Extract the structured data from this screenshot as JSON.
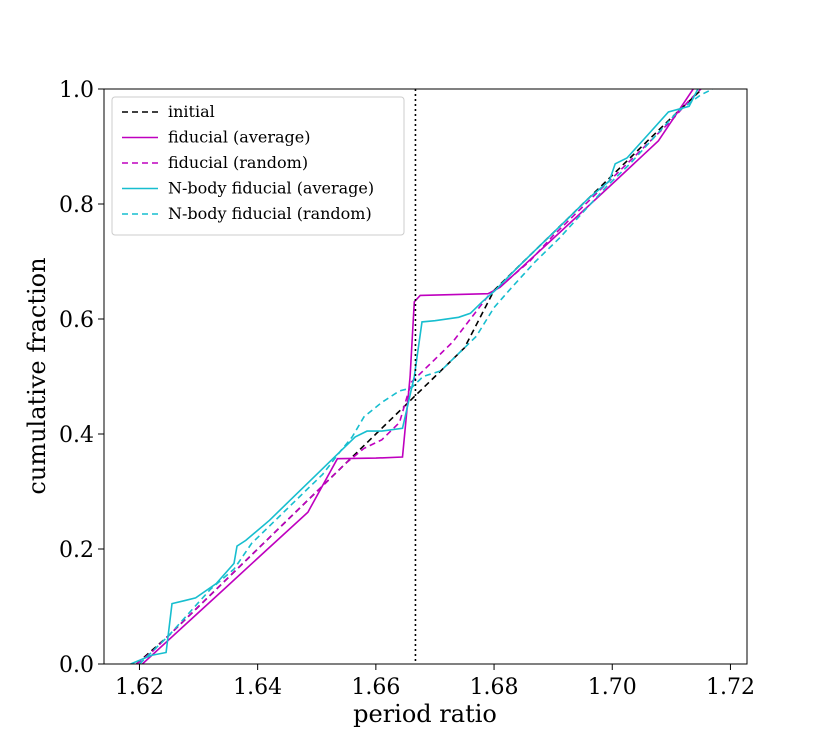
{
  "chart_data": {
    "type": "line",
    "xlabel": "period ratio",
    "ylabel": "cumulative fraction",
    "xlim": [
      1.614,
      1.7228
    ],
    "ylim": [
      0.0,
      1.0
    ],
    "xticks": [
      1.62,
      1.64,
      1.66,
      1.68,
      1.7,
      1.72
    ],
    "xtick_labels": [
      "1.62",
      "1.64",
      "1.66",
      "1.68",
      "1.70",
      "1.72"
    ],
    "yticks": [
      0.0,
      0.2,
      0.4,
      0.6,
      0.8,
      1.0
    ],
    "ytick_labels": [
      "0.0",
      "0.2",
      "0.4",
      "0.6",
      "0.8",
      "1.0"
    ],
    "grid": false,
    "legend_position": "upper-left",
    "reference_line": {
      "x": 1.6667,
      "style": "dotted",
      "color": "#000000"
    },
    "series": [
      {
        "name": "initial",
        "color": "#000000",
        "dash": "dashed",
        "points": [
          [
            1.6195,
            0.0
          ],
          [
            1.625,
            0.05
          ],
          [
            1.63,
            0.1
          ],
          [
            1.635,
            0.15
          ],
          [
            1.64,
            0.2
          ],
          [
            1.645,
            0.25
          ],
          [
            1.65,
            0.3
          ],
          [
            1.655,
            0.35
          ],
          [
            1.66,
            0.4
          ],
          [
            1.665,
            0.45
          ],
          [
            1.67,
            0.5
          ],
          [
            1.675,
            0.55
          ],
          [
            1.68,
            0.65
          ],
          [
            1.685,
            0.7
          ],
          [
            1.69,
            0.75
          ],
          [
            1.695,
            0.8
          ],
          [
            1.7,
            0.85
          ],
          [
            1.705,
            0.9
          ],
          [
            1.71,
            0.95
          ],
          [
            1.7152,
            1.0
          ]
        ]
      },
      {
        "name": "fiducial (average)",
        "color": "#bf00bf",
        "dash": "solid",
        "points": [
          [
            1.6205,
            0.0
          ],
          [
            1.6275,
            0.066
          ],
          [
            1.6345,
            0.132
          ],
          [
            1.6415,
            0.198
          ],
          [
            1.6485,
            0.264
          ],
          [
            1.6535,
            0.357
          ],
          [
            1.66,
            0.358
          ],
          [
            1.6645,
            0.36
          ],
          [
            1.6658,
            0.5
          ],
          [
            1.6665,
            0.63
          ],
          [
            1.6675,
            0.641
          ],
          [
            1.679,
            0.644
          ],
          [
            1.681,
            0.655
          ],
          [
            1.69,
            0.74
          ],
          [
            1.7,
            0.835
          ],
          [
            1.7078,
            0.91
          ],
          [
            1.7137,
            1.0
          ]
        ]
      },
      {
        "name": "fiducial (random)",
        "color": "#bf00bf",
        "dash": "dashed",
        "points": [
          [
            1.6195,
            0.0
          ],
          [
            1.622,
            0.02
          ],
          [
            1.625,
            0.05
          ],
          [
            1.628,
            0.08
          ],
          [
            1.632,
            0.12
          ],
          [
            1.636,
            0.16
          ],
          [
            1.64,
            0.2
          ],
          [
            1.644,
            0.24
          ],
          [
            1.648,
            0.28
          ],
          [
            1.652,
            0.32
          ],
          [
            1.655,
            0.35
          ],
          [
            1.658,
            0.375
          ],
          [
            1.661,
            0.39
          ],
          [
            1.664,
            0.42
          ],
          [
            1.666,
            0.49
          ],
          [
            1.668,
            0.51
          ],
          [
            1.671,
            0.54
          ],
          [
            1.673,
            0.56
          ],
          [
            1.676,
            0.6
          ],
          [
            1.679,
            0.64
          ],
          [
            1.682,
            0.665
          ],
          [
            1.686,
            0.7
          ],
          [
            1.69,
            0.745
          ],
          [
            1.694,
            0.785
          ],
          [
            1.698,
            0.825
          ],
          [
            1.702,
            0.865
          ],
          [
            1.706,
            0.905
          ],
          [
            1.71,
            0.945
          ],
          [
            1.713,
            0.98
          ],
          [
            1.715,
            1.0
          ]
        ]
      },
      {
        "name": "N-body fiducial (average)",
        "color": "#17becf",
        "dash": "solid",
        "points": [
          [
            1.6185,
            0.0
          ],
          [
            1.622,
            0.015
          ],
          [
            1.6245,
            0.02
          ],
          [
            1.6255,
            0.105
          ],
          [
            1.6275,
            0.11
          ],
          [
            1.6295,
            0.115
          ],
          [
            1.633,
            0.14
          ],
          [
            1.636,
            0.175
          ],
          [
            1.6365,
            0.205
          ],
          [
            1.638,
            0.215
          ],
          [
            1.642,
            0.25
          ],
          [
            1.646,
            0.29
          ],
          [
            1.65,
            0.33
          ],
          [
            1.654,
            0.37
          ],
          [
            1.6565,
            0.395
          ],
          [
            1.6585,
            0.405
          ],
          [
            1.661,
            0.405
          ],
          [
            1.6645,
            0.41
          ],
          [
            1.6665,
            0.5
          ],
          [
            1.6678,
            0.595
          ],
          [
            1.67,
            0.597
          ],
          [
            1.674,
            0.603
          ],
          [
            1.676,
            0.61
          ],
          [
            1.678,
            0.63
          ],
          [
            1.68,
            0.648
          ],
          [
            1.684,
            0.69
          ],
          [
            1.688,
            0.73
          ],
          [
            1.692,
            0.77
          ],
          [
            1.696,
            0.81
          ],
          [
            1.6995,
            0.84
          ],
          [
            1.7005,
            0.87
          ],
          [
            1.7025,
            0.88
          ],
          [
            1.706,
            0.92
          ],
          [
            1.7095,
            0.96
          ],
          [
            1.713,
            0.97
          ],
          [
            1.7145,
            1.0
          ]
        ]
      },
      {
        "name": "N-body fiducial (random)",
        "color": "#17becf",
        "dash": "dashed",
        "points": [
          [
            1.62,
            0.0
          ],
          [
            1.622,
            0.02
          ],
          [
            1.625,
            0.05
          ],
          [
            1.6285,
            0.09
          ],
          [
            1.632,
            0.13
          ],
          [
            1.636,
            0.165
          ],
          [
            1.639,
            0.21
          ],
          [
            1.643,
            0.25
          ],
          [
            1.648,
            0.3
          ],
          [
            1.651,
            0.33
          ],
          [
            1.654,
            0.37
          ],
          [
            1.656,
            0.395
          ],
          [
            1.658,
            0.43
          ],
          [
            1.661,
            0.455
          ],
          [
            1.664,
            0.475
          ],
          [
            1.666,
            0.48
          ],
          [
            1.668,
            0.5
          ],
          [
            1.671,
            0.51
          ],
          [
            1.674,
            0.54
          ],
          [
            1.677,
            0.57
          ],
          [
            1.68,
            0.62
          ],
          [
            1.683,
            0.655
          ],
          [
            1.687,
            0.7
          ],
          [
            1.691,
            0.74
          ],
          [
            1.695,
            0.785
          ],
          [
            1.699,
            0.83
          ],
          [
            1.703,
            0.87
          ],
          [
            1.707,
            0.915
          ],
          [
            1.711,
            0.96
          ],
          [
            1.715,
            0.99
          ],
          [
            1.717,
            1.0
          ]
        ]
      }
    ]
  }
}
